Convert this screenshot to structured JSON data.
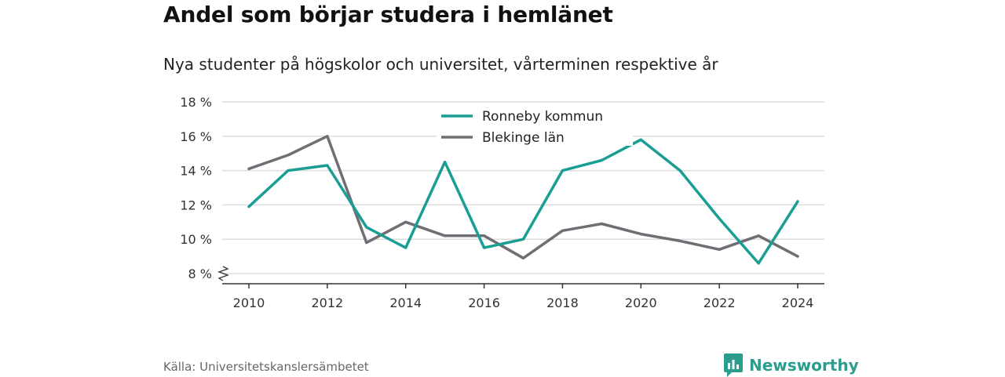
{
  "header": {
    "title": "Andel som börjar studera i hemlänet",
    "subtitle": "Nya studenter på högskolor och universitet, vårterminen respektive år"
  },
  "footer": {
    "source": "Källa: Universitetskanslersämbetet",
    "brand": "Newsworthy"
  },
  "colors": {
    "ronneby": "#1a9e93",
    "blekinge": "#706e74",
    "grid": "#dddddd",
    "axis": "#333333",
    "brand": "#2a9d8f"
  },
  "chart_data": {
    "type": "line",
    "x": [
      2010,
      2011,
      2012,
      2013,
      2014,
      2015,
      2016,
      2017,
      2018,
      2019,
      2020,
      2021,
      2022,
      2023,
      2024
    ],
    "series": [
      {
        "name": "Ronneby kommun",
        "values": [
          11.9,
          14.0,
          14.3,
          10.7,
          9.5,
          14.5,
          9.5,
          10.0,
          14.0,
          14.6,
          15.8,
          14.0,
          11.2,
          8.6,
          12.2
        ]
      },
      {
        "name": "Blekinge län",
        "values": [
          14.1,
          14.9,
          16.0,
          9.8,
          11.0,
          10.2,
          10.2,
          8.9,
          10.5,
          10.9,
          10.3,
          9.9,
          9.4,
          10.2,
          9.0
        ]
      }
    ],
    "ylim": [
      8,
      18
    ],
    "yticks": [
      8,
      10,
      12,
      14,
      16,
      18
    ],
    "ytick_labels": [
      "8 %",
      "10 %",
      "12 %",
      "14 %",
      "16 %",
      "18 %"
    ],
    "xticks": [
      2010,
      2012,
      2014,
      2016,
      2018,
      2020,
      2022,
      2024
    ],
    "xtick_labels": [
      "2010",
      "2012",
      "2014",
      "2016",
      "2018",
      "2020",
      "2022",
      "2024"
    ],
    "xlabel": "",
    "ylabel": "",
    "grid": true,
    "legend": "top-center",
    "axis_break": true
  }
}
